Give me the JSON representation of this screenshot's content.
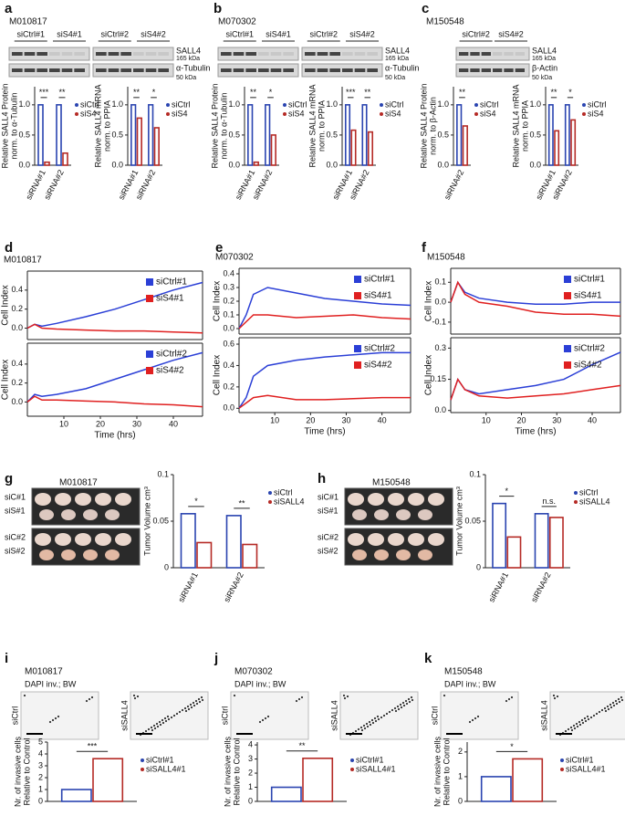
{
  "panels": [
    {
      "letter": "a",
      "title": "M010817",
      "lanes": [
        "siCtrl#1",
        "siS4#1",
        "siCtrl#2",
        "siS4#2"
      ],
      "bands": [
        "SALL4",
        "165 kDa",
        "α-Tubulin",
        "50 kDa"
      ]
    },
    {
      "letter": "b",
      "title": "M070302",
      "lanes": [
        "siCtrl#1",
        "siS4#1",
        "siCtrl#2",
        "siS4#2"
      ],
      "bands": [
        "SALL4",
        "165 kDa",
        "α-Tubulin",
        "50 kDa"
      ]
    },
    {
      "letter": "c",
      "title": "M150548",
      "lanes": [
        "siCtrl#2",
        "siS4#2"
      ],
      "bands": [
        "SALL4",
        "165 kDa",
        "β-Actin",
        "50 kDa"
      ]
    },
    {
      "letter": "d"
    },
    {
      "letter": "e"
    },
    {
      "letter": "f"
    },
    {
      "letter": "g",
      "title": "M010817",
      "images": [
        "siC#1",
        "siS#1",
        "siC#2",
        "siS#2"
      ]
    },
    {
      "letter": "h",
      "title": "M150548",
      "images": [
        "siC#1",
        "siS#1",
        "siC#2",
        "siS#2"
      ]
    },
    {
      "letter": "i",
      "title": "M010817",
      "subtitle": "DAPI inv.; BW",
      "images": [
        "siCtrl",
        "siSALL4"
      ]
    },
    {
      "letter": "j",
      "title": "M070302",
      "subtitle": "DAPI inv.; BW",
      "images": [
        "siCtrl",
        "siSALL4"
      ]
    },
    {
      "letter": "k",
      "title": "M150548",
      "subtitle": "DAPI inv.; BW",
      "images": [
        "siCtrl",
        "siSALL4"
      ]
    }
  ],
  "chart_data": [
    {
      "type": "bar",
      "ylabel": [
        "Relative SALL4 Protein",
        "norm. to α-Tubulin"
      ],
      "categories": [
        "siRNA#1",
        "siRNA#2"
      ],
      "series": [
        {
          "name": "siCtrl",
          "color": "#2a44b0",
          "values": [
            1.0,
            1.0
          ]
        },
        {
          "name": "siS4",
          "color": "#b52a25",
          "values": [
            0.05,
            0.2
          ]
        }
      ],
      "ylim": [
        0,
        1.3
      ],
      "yticks": [
        {
          "value": 0,
          "label": "0.0"
        },
        0.5,
        {
          "value": 1,
          "label": "1.0"
        }
      ],
      "significance": [
        "***",
        "**"
      ]
    },
    {
      "type": "bar",
      "ylabel": [
        "Relative SALL4 mRNA",
        "norm. to PPIA"
      ],
      "categories": [
        "siRNA#1",
        "siRNA#2"
      ],
      "series": [
        {
          "name": "siCtrl",
          "color": "#2a44b0",
          "values": [
            1.0,
            1.0
          ]
        },
        {
          "name": "siS4",
          "color": "#b52a25",
          "values": [
            0.78,
            0.62
          ]
        }
      ],
      "ylim": [
        0,
        1.3
      ],
      "yticks": [
        {
          "value": 0,
          "label": "0.0"
        },
        0.5,
        {
          "value": 1,
          "label": "1.0"
        }
      ],
      "significance": [
        "**",
        "*"
      ]
    },
    {
      "type": "bar",
      "ylabel": [
        "Relative SALL4 Protein",
        "norm. to α-Tubulin"
      ],
      "categories": [
        "siRNA#1",
        "siRNA#2"
      ],
      "series": [
        {
          "name": "siCtrl",
          "color": "#2a44b0",
          "values": [
            1.0,
            1.0
          ]
        },
        {
          "name": "siS4",
          "color": "#b52a25",
          "values": [
            0.05,
            0.5
          ]
        }
      ],
      "ylim": [
        0,
        1.3
      ],
      "yticks": [
        {
          "value": 0,
          "label": "0.0"
        },
        0.5,
        {
          "value": 1,
          "label": "1.0"
        }
      ],
      "significance": [
        "**",
        "*"
      ]
    },
    {
      "type": "bar",
      "ylabel": [
        "Relative SALL4 mRNA",
        "norm. to PPIA"
      ],
      "categories": [
        "siRNA#1",
        "siRNA#2"
      ],
      "series": [
        {
          "name": "siCtrl",
          "color": "#2a44b0",
          "values": [
            1.0,
            1.0
          ]
        },
        {
          "name": "siS4",
          "color": "#b52a25",
          "values": [
            0.58,
            0.55
          ]
        }
      ],
      "ylim": [
        0,
        1.3
      ],
      "yticks": [
        {
          "value": 0,
          "label": "0.0"
        },
        0.5,
        {
          "value": 1,
          "label": "1.0"
        }
      ],
      "significance": [
        "***",
        "**"
      ]
    },
    {
      "type": "bar",
      "ylabel": [
        "Relative SALL4 Protein",
        "norm. to β-Actin"
      ],
      "categories": [
        "siRNA#2"
      ],
      "series": [
        {
          "name": "siCtrl",
          "color": "#2a44b0",
          "values": [
            1.0
          ]
        },
        {
          "name": "siS4",
          "color": "#b52a25",
          "values": [
            0.65
          ]
        }
      ],
      "ylim": [
        0,
        1.3
      ],
      "yticks": [
        {
          "value": 0,
          "label": "0.0"
        },
        0.5,
        {
          "value": 1,
          "label": "1.0"
        }
      ],
      "significance": [
        "**"
      ]
    },
    {
      "type": "bar",
      "ylabel": [
        "Relative SALL4 mRNA",
        "norm. to PPIA"
      ],
      "categories": [
        "siRNA#1",
        "siRNA#2"
      ],
      "series": [
        {
          "name": "siCtrl",
          "color": "#2a44b0",
          "values": [
            1.0,
            1.0
          ]
        },
        {
          "name": "siS4",
          "color": "#b52a25",
          "values": [
            0.57,
            0.75
          ]
        }
      ],
      "ylim": [
        0,
        1.3
      ],
      "yticks": [
        {
          "value": 0,
          "label": "0.0"
        },
        0.5,
        {
          "value": 1,
          "label": "1.0"
        }
      ],
      "significance": [
        "**",
        "*"
      ]
    },
    {
      "type": "line",
      "title": "M010817",
      "ylabel": "Cell Index",
      "x": [
        0,
        2,
        4,
        8,
        16,
        24,
        32,
        40,
        48
      ],
      "xlim": [
        0,
        48
      ],
      "series": [
        {
          "name": "siCtrl#1",
          "color": "#2b3fd6",
          "values": [
            0,
            0.04,
            0.02,
            0.05,
            0.12,
            0.2,
            0.3,
            0.4,
            0.48
          ]
        },
        {
          "name": "siS4#1",
          "color": "#e02020",
          "values": [
            0,
            0.04,
            0.0,
            -0.01,
            -0.02,
            -0.03,
            -0.03,
            -0.04,
            -0.05
          ]
        }
      ],
      "ylim": [
        -0.12,
        0.6
      ],
      "yticks": [
        {
          "value": 0,
          "label": "0.0"
        },
        0.2,
        0.4
      ]
    },
    {
      "type": "line",
      "ylabel": "Cell Index",
      "xlabel": "Time (hrs)",
      "x": [
        0,
        2,
        4,
        8,
        16,
        24,
        32,
        40,
        48
      ],
      "xlim": [
        0,
        48
      ],
      "xticks": [
        10,
        20,
        30,
        40
      ],
      "series": [
        {
          "name": "siCtrl#2",
          "color": "#2b3fd6",
          "values": [
            0,
            0.08,
            0.06,
            0.08,
            0.14,
            0.24,
            0.34,
            0.44,
            0.52
          ]
        },
        {
          "name": "siS4#2",
          "color": "#e02020",
          "values": [
            0,
            0.06,
            0.02,
            0.02,
            0.01,
            0.0,
            -0.02,
            -0.03,
            -0.05
          ]
        }
      ],
      "ylim": [
        -0.15,
        0.62
      ],
      "yticks": [
        {
          "value": 0,
          "label": "0.0"
        },
        0.2,
        0.4
      ]
    },
    {
      "type": "line",
      "title": "M070302",
      "ylabel": "Cell Index",
      "x": [
        0,
        2,
        4,
        8,
        16,
        24,
        32,
        40,
        48
      ],
      "xlim": [
        0,
        48
      ],
      "series": [
        {
          "name": "siCtrl#1",
          "color": "#2b3fd6",
          "values": [
            0,
            0.1,
            0.25,
            0.3,
            0.26,
            0.22,
            0.2,
            0.18,
            0.17
          ]
        },
        {
          "name": "siS4#1",
          "color": "#e02020",
          "values": [
            0,
            0.05,
            0.1,
            0.1,
            0.08,
            0.09,
            0.1,
            0.08,
            0.07
          ]
        }
      ],
      "ylim": [
        -0.04,
        0.44
      ],
      "yticks": [
        {
          "value": 0,
          "label": "0.0"
        },
        0.1,
        0.2,
        0.3,
        0.4
      ]
    },
    {
      "type": "line",
      "ylabel": "Cell Index",
      "xlabel": "Time (hrs)",
      "x": [
        0,
        2,
        4,
        8,
        16,
        24,
        32,
        40,
        48
      ],
      "xlim": [
        0,
        48
      ],
      "xticks": [
        10,
        20,
        30,
        40
      ],
      "series": [
        {
          "name": "siCtrl#2",
          "color": "#2b3fd6",
          "values": [
            0,
            0.1,
            0.3,
            0.4,
            0.45,
            0.48,
            0.5,
            0.52,
            0.52
          ]
        },
        {
          "name": "siS4#2",
          "color": "#e02020",
          "values": [
            0,
            0.05,
            0.1,
            0.12,
            0.08,
            0.08,
            0.09,
            0.1,
            0.1
          ]
        }
      ],
      "ylim": [
        -0.04,
        0.66
      ],
      "yticks": [
        {
          "value": 0,
          "label": "0.0"
        },
        0.2,
        0.4,
        0.6
      ]
    },
    {
      "type": "line",
      "title": "M150548",
      "ylabel": "Cell Index",
      "x": [
        0,
        2,
        4,
        8,
        16,
        24,
        32,
        40,
        48
      ],
      "xlim": [
        0,
        48
      ],
      "series": [
        {
          "name": "siCtrl#1",
          "color": "#2b3fd6",
          "values": [
            0,
            0.1,
            0.05,
            0.02,
            0.0,
            -0.01,
            -0.01,
            0.0,
            0.0
          ]
        },
        {
          "name": "siS4#1",
          "color": "#e02020",
          "values": [
            0,
            0.1,
            0.04,
            0.0,
            -0.02,
            -0.05,
            -0.06,
            -0.06,
            -0.07
          ]
        }
      ],
      "ylim": [
        -0.16,
        0.17
      ],
      "yticks": [
        -0.1,
        {
          "value": 0,
          "label": "0.0"
        },
        0.1
      ]
    },
    {
      "type": "line",
      "ylabel": "Cell Index",
      "xlabel": "Time (hrs)",
      "x": [
        0,
        2,
        4,
        8,
        16,
        24,
        32,
        40,
        48
      ],
      "xlim": [
        0,
        48
      ],
      "xticks": [
        10,
        20,
        30,
        40
      ],
      "series": [
        {
          "name": "siCtrl#2",
          "color": "#2b3fd6",
          "values": [
            0.05,
            0.15,
            0.1,
            0.08,
            0.1,
            0.12,
            0.15,
            0.22,
            0.28
          ]
        },
        {
          "name": "siS4#2",
          "color": "#e02020",
          "values": [
            0.05,
            0.15,
            0.1,
            0.07,
            0.06,
            0.07,
            0.08,
            0.1,
            0.12
          ]
        }
      ],
      "ylim": [
        -0.01,
        0.35
      ],
      "yticks": [
        {
          "value": 0,
          "label": "0.0"
        },
        0.15,
        0.3
      ]
    },
    {
      "type": "bar",
      "ylabel": [
        "Tumor Volume cm³"
      ],
      "categories": [
        "siRNA#1",
        "siRNA#2"
      ],
      "series": [
        {
          "name": "siCtrl",
          "color": "#2a44b0",
          "values": [
            0.058,
            0.056
          ]
        },
        {
          "name": "siSALL4",
          "color": "#b52a25",
          "values": [
            0.027,
            0.025
          ]
        }
      ],
      "ylim": [
        0,
        0.1
      ],
      "yticks": [
        0,
        0.05,
        0.1
      ],
      "significance": [
        "*",
        "**"
      ]
    },
    {
      "type": "bar",
      "ylabel": [
        "Tumor Volume cm³"
      ],
      "categories": [
        "siRNA#1",
        "siRNA#2"
      ],
      "series": [
        {
          "name": "siCtrl",
          "color": "#2a44b0",
          "values": [
            0.069,
            0.058
          ]
        },
        {
          "name": "siSALL4",
          "color": "#b52a25",
          "values": [
            0.033,
            0.054
          ]
        }
      ],
      "ylim": [
        0,
        0.1
      ],
      "yticks": [
        0,
        0.05,
        0.1
      ],
      "significance": [
        "*",
        "n.s."
      ]
    },
    {
      "type": "bar",
      "ylabel": [
        "Nr. of invasive cells",
        "Relative to Control"
      ],
      "categories": [
        null
      ],
      "series": [
        {
          "name": "siCtrl#1",
          "color": "#2a44b0",
          "values": [
            1.0
          ]
        },
        {
          "name": "siSALL4#1",
          "color": "#b52a25",
          "values": [
            3.6
          ]
        }
      ],
      "ylim": [
        0,
        5
      ],
      "yticks": [
        0,
        1,
        2,
        3,
        4,
        5
      ],
      "significance": [
        "***"
      ]
    },
    {
      "type": "bar",
      "ylabel": [
        "Nr. of invasive cells",
        "Relative to Control"
      ],
      "categories": [
        null
      ],
      "series": [
        {
          "name": "siCtrl#1",
          "color": "#2a44b0",
          "values": [
            1.0
          ]
        },
        {
          "name": "siSALL4#1",
          "color": "#b52a25",
          "values": [
            3.05
          ]
        }
      ],
      "ylim": [
        0,
        4.2
      ],
      "yticks": [
        0,
        1,
        2,
        3,
        4
      ],
      "significance": [
        "**"
      ]
    },
    {
      "type": "bar",
      "ylabel": [
        "Nr. of invasive cells",
        "Relative to Control"
      ],
      "categories": [
        null
      ],
      "series": [
        {
          "name": "siCtrl#1",
          "color": "#2a44b0",
          "values": [
            1.0
          ]
        },
        {
          "name": "siSALL4#1",
          "color": "#b52a25",
          "values": [
            1.72
          ]
        }
      ],
      "ylim": [
        0,
        2.4
      ],
      "yticks": [
        0,
        1,
        2
      ],
      "significance": [
        "*"
      ]
    }
  ]
}
